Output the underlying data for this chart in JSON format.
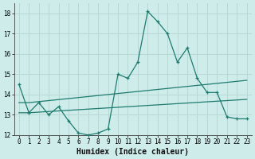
{
  "title": "",
  "xlabel": "Humidex (Indice chaleur)",
  "bg_color": "#ceecea",
  "grid_color": "#b8d8d6",
  "line_color": "#1e7b6e",
  "x": [
    0,
    1,
    2,
    3,
    4,
    5,
    6,
    7,
    8,
    9,
    10,
    11,
    12,
    13,
    14,
    15,
    16,
    17,
    18,
    19,
    20,
    21,
    22,
    23
  ],
  "y_main": [
    14.5,
    13.1,
    13.6,
    13.0,
    13.4,
    12.7,
    12.1,
    12.0,
    12.1,
    12.3,
    15.0,
    14.8,
    15.6,
    18.1,
    17.6,
    17.0,
    15.6,
    16.3,
    14.8,
    14.1,
    14.1,
    12.9,
    12.8,
    12.8
  ],
  "y_line2": [
    13.6,
    13.6,
    13.65,
    13.7,
    13.75,
    13.8,
    13.85,
    13.9,
    13.95,
    14.0,
    14.05,
    14.1,
    14.15,
    14.2,
    14.25,
    14.3,
    14.35,
    14.4,
    14.45,
    14.5,
    14.55,
    14.6,
    14.65,
    14.7
  ],
  "y_line3": [
    13.1,
    13.1,
    13.13,
    13.16,
    13.19,
    13.22,
    13.25,
    13.28,
    13.31,
    13.34,
    13.37,
    13.4,
    13.43,
    13.46,
    13.49,
    13.52,
    13.55,
    13.58,
    13.61,
    13.64,
    13.67,
    13.7,
    13.73,
    13.76
  ],
  "ylim": [
    12,
    18.5
  ],
  "xlim": [
    -0.5,
    23.5
  ],
  "yticks": [
    12,
    13,
    14,
    15,
    16,
    17,
    18
  ],
  "xticks": [
    0,
    1,
    2,
    3,
    4,
    5,
    6,
    7,
    8,
    9,
    10,
    11,
    12,
    13,
    14,
    15,
    16,
    17,
    18,
    19,
    20,
    21,
    22,
    23
  ]
}
